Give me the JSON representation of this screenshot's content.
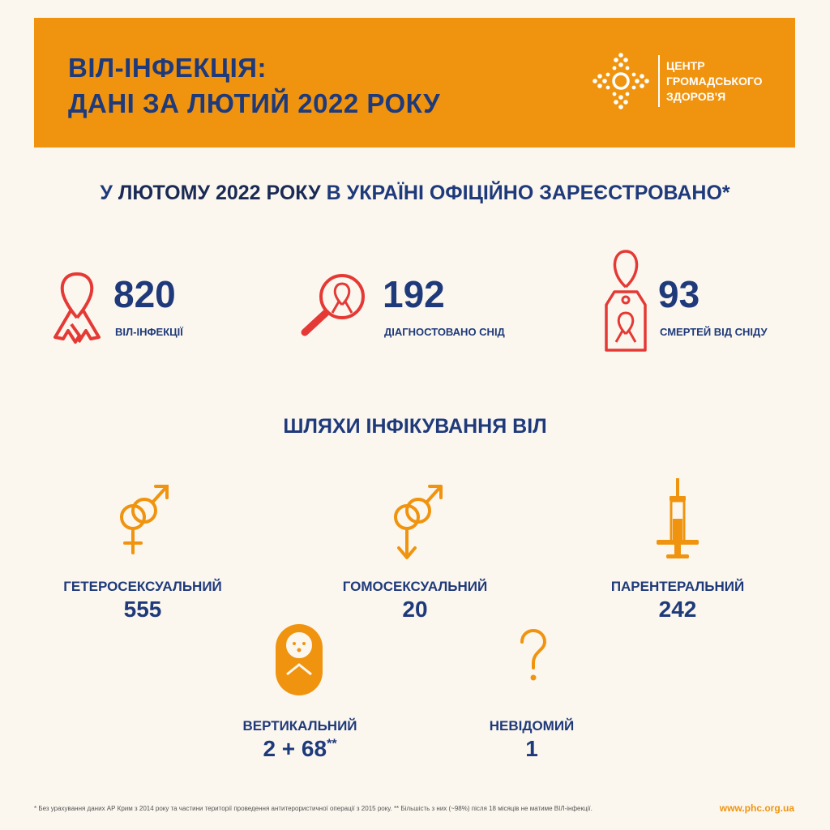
{
  "colors": {
    "orange": "#f0940f",
    "navy": "#1f3a7a",
    "red": "#e53935",
    "background": "#fbf7ef"
  },
  "banner": {
    "title_line1": "ВІЛ-ІНФЕКЦІЯ:",
    "title_line2": "ДАНІ ЗА ЛЮТИЙ 2022 РОКУ",
    "logo_line1": "ЦЕНТР",
    "logo_line2": "ГРОМАДСЬКОГО",
    "logo_line3": "ЗДОРОВ'Я",
    "logo_icon": "public-health-center-logo-icon"
  },
  "headline": {
    "prefix": "У ",
    "highlight": "ЛЮТОМУ 2022 РОКУ",
    "suffix": " В УКРАЇНІ ОФІЦІЙНО ЗАРЕЄСТРОВАНО*"
  },
  "stats": [
    {
      "value": "820",
      "label": "ВІЛ-ІНФЕКЦІЇ",
      "icon": "awareness-ribbon-icon"
    },
    {
      "value": "192",
      "label": "ДІАГНОСТОВАНО СНІД",
      "icon": "magnifier-ribbon-icon"
    },
    {
      "value": "93",
      "label": "СМЕРТЕЙ ВІД СНІДУ",
      "icon": "tag-ribbon-icon"
    }
  ],
  "routes_title": "ШЛЯХИ ІНФІКУВАННЯ ВІЛ",
  "routes": [
    {
      "label": "ГЕТЕРОСЕКСУАЛЬНИЙ",
      "value": "555",
      "icon": "male-female-symbol-icon"
    },
    {
      "label": "ГОМОСЕКСУАЛЬНИЙ",
      "value": "20",
      "icon": "male-male-symbol-icon"
    },
    {
      "label": "ПАРЕНТЕРАЛЬНИЙ",
      "value": "242",
      "icon": "syringe-icon"
    },
    {
      "label": "ВЕРТИКАЛЬНИЙ",
      "value": "2 + 68",
      "value_mark": "**",
      "icon": "baby-icon"
    },
    {
      "label": "НЕВІДОМИЙ",
      "value": "1",
      "icon": "question-mark-icon"
    }
  ],
  "footnote": "* Без урахування даних АР Крим з 2014 року та частини території проведення антитерористичної операції з 2015 року.    ** Більшість з них (~98%) після 18 місяців не матиме ВІЛ-інфекції.",
  "website": "www.phc.org.ua"
}
